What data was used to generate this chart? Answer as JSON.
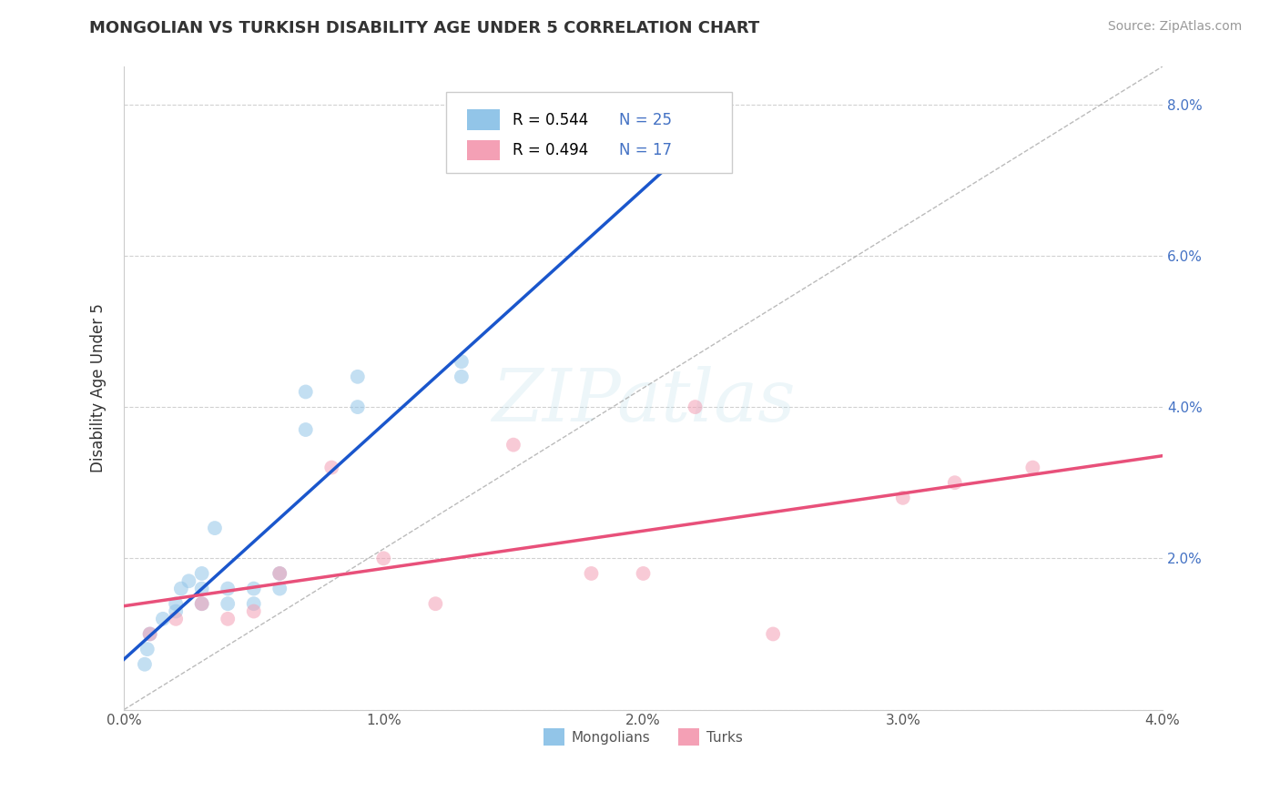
{
  "title": "MONGOLIAN VS TURKISH DISABILITY AGE UNDER 5 CORRELATION CHART",
  "source": "Source: ZipAtlas.com",
  "ylabel": "Disability Age Under 5",
  "xlim": [
    0.0,
    0.04
  ],
  "ylim": [
    0.0,
    0.085
  ],
  "x_ticks": [
    0.0,
    0.01,
    0.02,
    0.03,
    0.04
  ],
  "x_tick_labels": [
    "0.0%",
    "1.0%",
    "2.0%",
    "3.0%",
    "4.0%"
  ],
  "y_ticks_left": [
    0.0,
    0.02,
    0.04,
    0.06,
    0.08
  ],
  "y_tick_labels_left": [
    "",
    "",
    "",
    "",
    ""
  ],
  "y_ticks_right": [
    0.02,
    0.04,
    0.06,
    0.08
  ],
  "y_tick_labels_right": [
    "2.0%",
    "4.0%",
    "6.0%",
    "8.0%"
  ],
  "mongolian_x": [
    0.0008,
    0.0009,
    0.001,
    0.0015,
    0.002,
    0.002,
    0.0022,
    0.0025,
    0.003,
    0.003,
    0.003,
    0.0035,
    0.004,
    0.004,
    0.005,
    0.005,
    0.006,
    0.006,
    0.007,
    0.007,
    0.009,
    0.009,
    0.013,
    0.013,
    0.022
  ],
  "mongolian_y": [
    0.006,
    0.008,
    0.01,
    0.012,
    0.013,
    0.014,
    0.016,
    0.017,
    0.014,
    0.016,
    0.018,
    0.024,
    0.014,
    0.016,
    0.014,
    0.016,
    0.016,
    0.018,
    0.037,
    0.042,
    0.04,
    0.044,
    0.044,
    0.046,
    0.072
  ],
  "turkish_x": [
    0.001,
    0.002,
    0.003,
    0.004,
    0.005,
    0.006,
    0.008,
    0.01,
    0.012,
    0.015,
    0.018,
    0.02,
    0.022,
    0.025,
    0.03,
    0.032,
    0.035
  ],
  "turkish_y": [
    0.01,
    0.012,
    0.014,
    0.012,
    0.013,
    0.018,
    0.032,
    0.02,
    0.014,
    0.035,
    0.018,
    0.018,
    0.04,
    0.01,
    0.028,
    0.03,
    0.032
  ],
  "mongolian_color": "#92c5e8",
  "turkish_color": "#f4a0b5",
  "mongolian_line_color": "#1a56cc",
  "turkish_line_color": "#e8507a",
  "dashed_line_color": "#aaaaaa",
  "R_mongolian": 0.544,
  "N_mongolian": 25,
  "R_turkish": 0.494,
  "N_turkish": 17,
  "marker_size": 130,
  "alpha": 0.55,
  "background_color": "#ffffff",
  "grid_color": "#cccccc",
  "title_color": "#333333",
  "axis_label_color": "#333333",
  "tick_label_color": "#555555",
  "right_tick_color": "#4472c4",
  "legend_text_color": "#4472c4",
  "bottom_legend_text_color": "#555555"
}
